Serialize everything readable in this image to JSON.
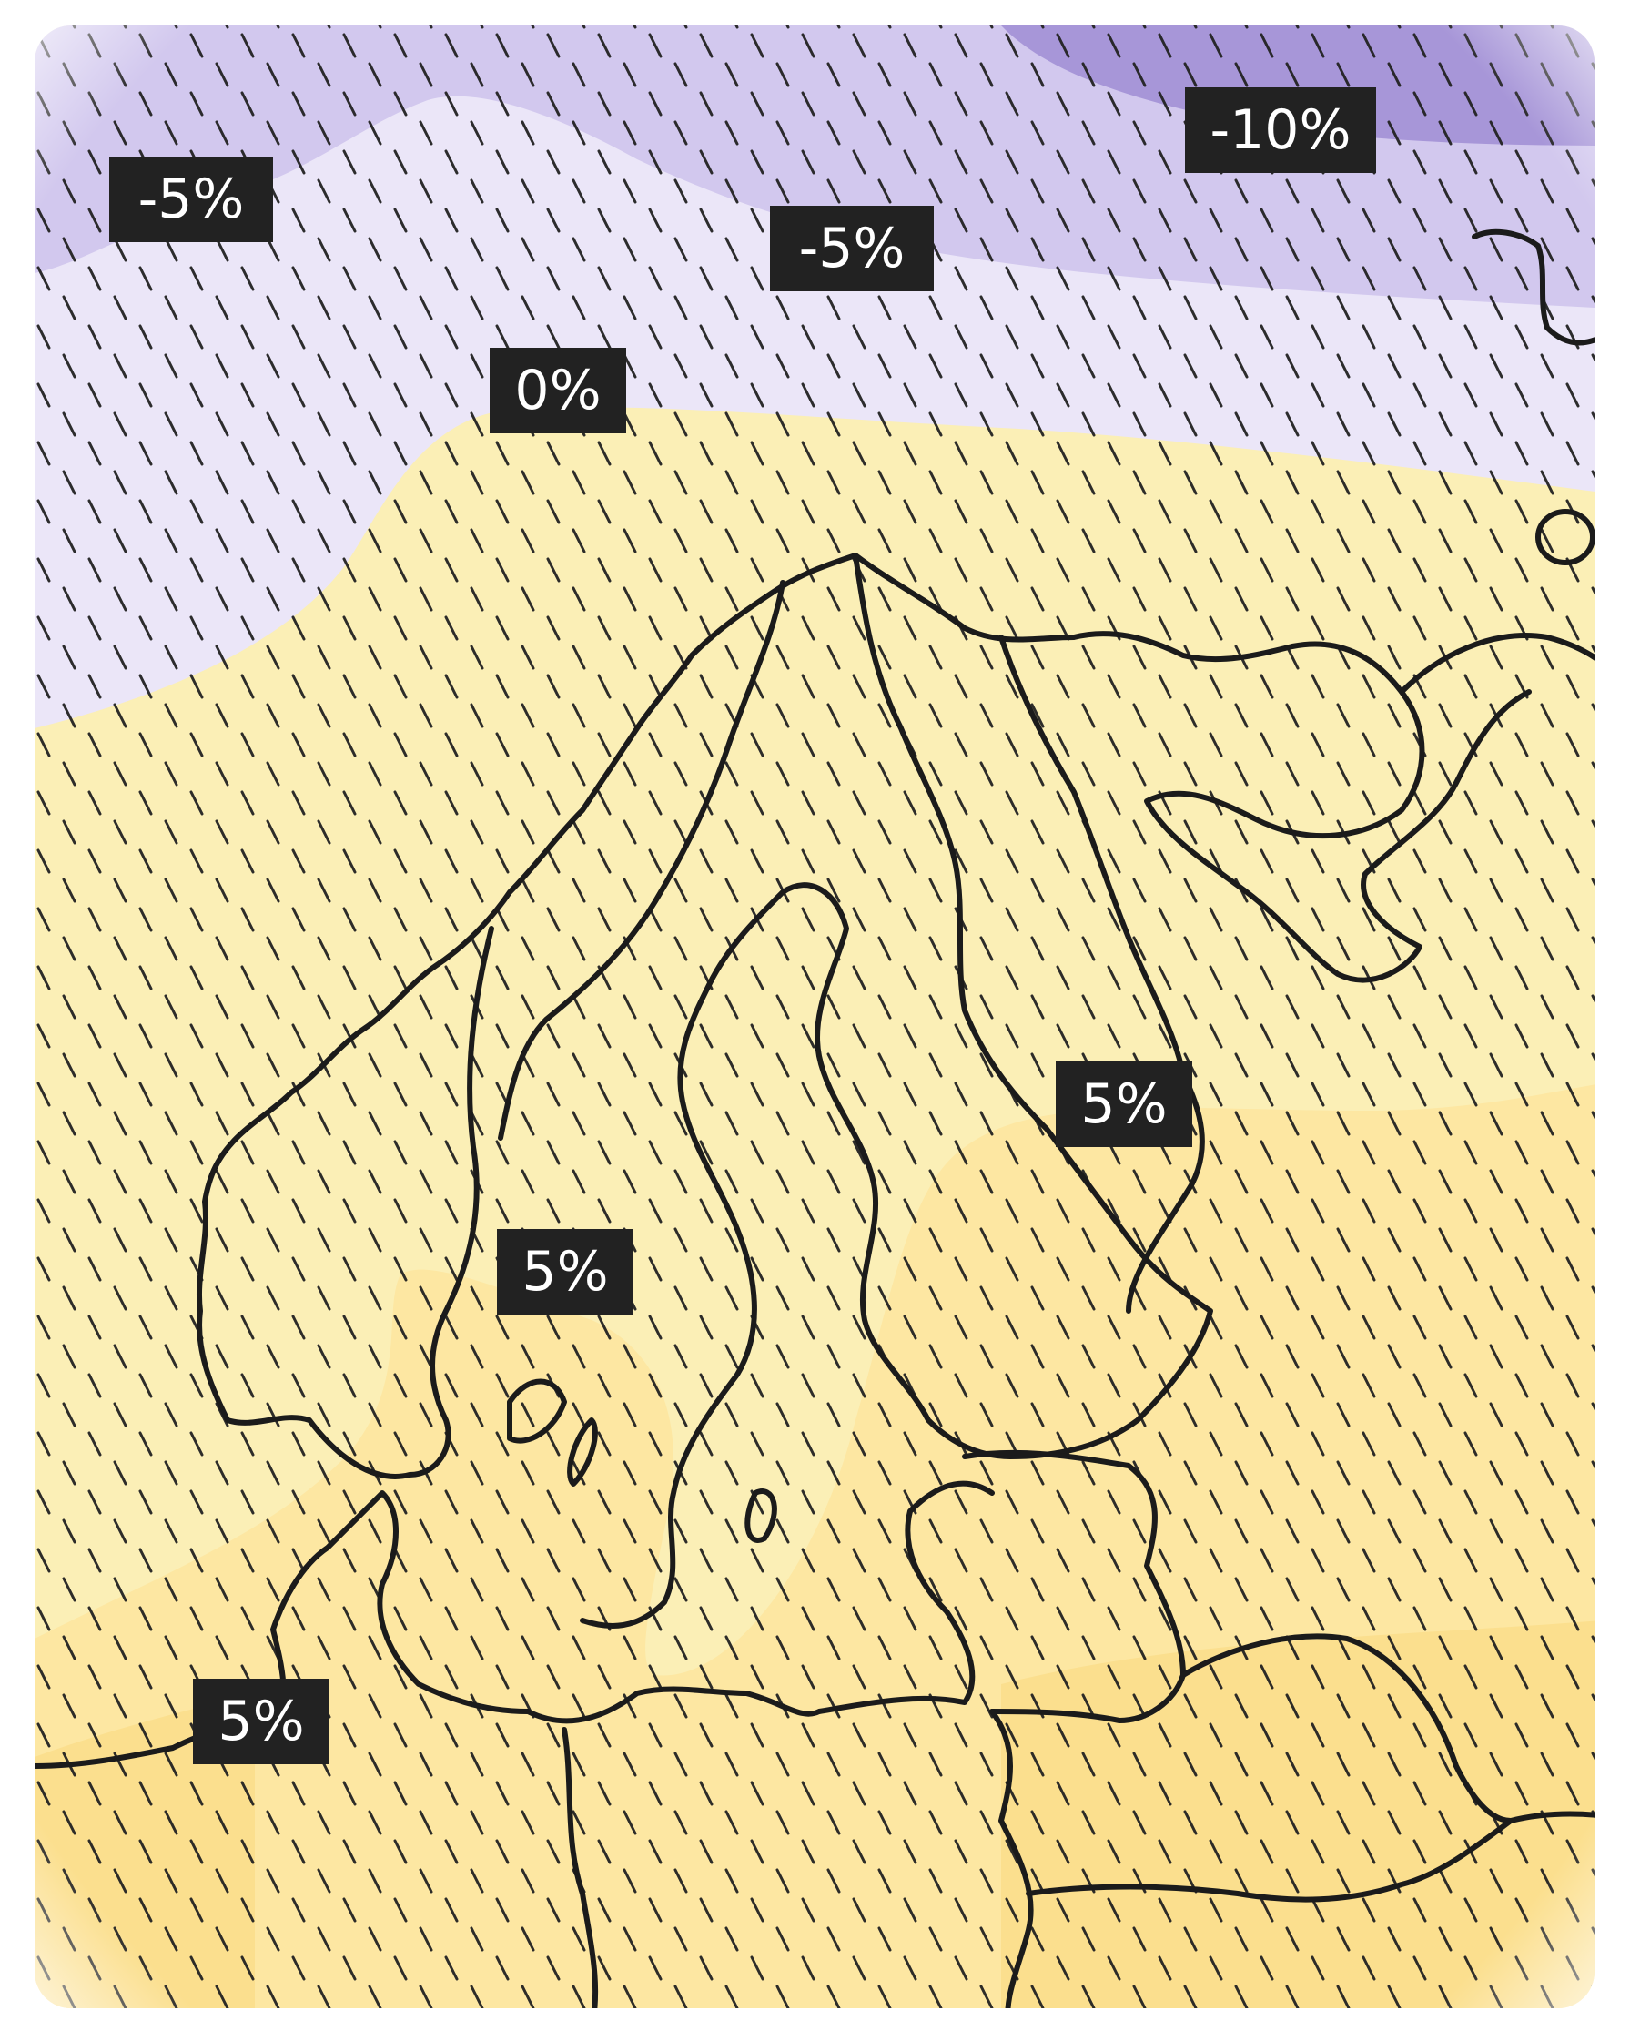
{
  "map": {
    "colors": {
      "strong_decrease": "#a796d8",
      "decrease": "#d2c8ee",
      "slight_decrease": "#ebe6f8",
      "slight_increase": "#fbefb6",
      "increase": "#fde7a2",
      "strong_increase": "#fbdf8e",
      "hatch": "#222222",
      "coastline": "#1b1b1b",
      "label_bg": "#222222",
      "label_text": "#ffffff"
    },
    "labels": [
      {
        "id": "nw-ocean",
        "text": "-5%"
      },
      {
        "id": "n-ocean",
        "text": "-5%"
      },
      {
        "id": "ne-ocean",
        "text": "-10%"
      },
      {
        "id": "norwegian-sea",
        "text": "0%"
      },
      {
        "id": "finland-east",
        "text": "5%"
      },
      {
        "id": "sweden-south",
        "text": "5%"
      },
      {
        "id": "north-sea",
        "text": "5%"
      }
    ]
  }
}
